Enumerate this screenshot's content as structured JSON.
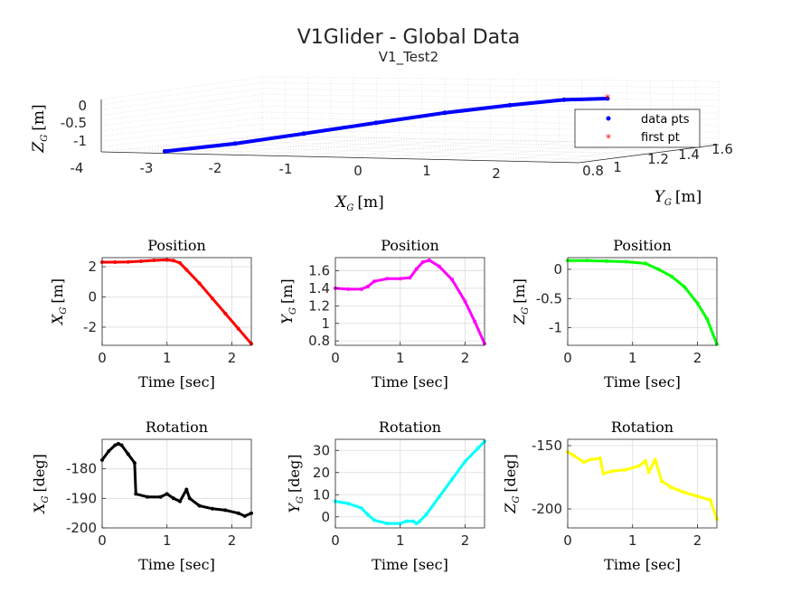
{
  "figure": {
    "title": "V1Glider - Global Data",
    "subtitle": "V1_Test2"
  },
  "colors": {
    "xpos": "#ff0000",
    "ypos": "#ff00ff",
    "zpos": "#00ff00",
    "xrot": "#000000",
    "yrot": "#00ffff",
    "zrot": "#ffff00",
    "track3d": "#0000ff",
    "first_pt": "#ff0000"
  },
  "chart_data": [
    {
      "id": "trajectory3d",
      "type": "scatter",
      "title": "",
      "xlabel": "X",
      "xlabel_sub": "G",
      "xlabel_unit": "[m]",
      "ylabel": "Y",
      "ylabel_sub": "G",
      "ylabel_unit": "[m]",
      "zlabel": "Z",
      "zlabel_sub": "G",
      "zlabel_unit": "[m]",
      "x_ticks": [
        "-4",
        "-3",
        "-2",
        "-1",
        "0",
        "1",
        "2"
      ],
      "y_ticks": [
        "0.8",
        "1",
        "1.2",
        "1.4",
        "1.6"
      ],
      "z_ticks": [
        "0",
        "-0.5",
        "-1"
      ],
      "legend": [
        "data pts",
        "first pt"
      ],
      "legend_position": "right",
      "grid": true,
      "series": [
        {
          "name": "data pts",
          "x": [
            -3.2,
            -2.4,
            -1.6,
            -0.8,
            0.0,
            0.8,
            1.6,
            2.3
          ],
          "y": [
            0.78,
            0.95,
            1.1,
            1.3,
            1.45,
            1.55,
            1.5,
            1.4
          ],
          "z": [
            -1.28,
            -1.1,
            -0.85,
            -0.6,
            -0.35,
            -0.15,
            0.05,
            0.15
          ]
        },
        {
          "name": "first pt",
          "x": [
            2.3
          ],
          "y": [
            1.4
          ],
          "z": [
            0.15
          ]
        }
      ]
    },
    {
      "id": "xpos",
      "type": "scatter",
      "title": "Position",
      "xlabel": "Time [sec]",
      "ylabel": "X",
      "ylabel_sub": "G",
      "ylabel_unit": "[m]",
      "xlim": [
        0,
        2.3
      ],
      "ylim": [
        -3.2,
        2.6
      ],
      "xticks": [
        0,
        1,
        2
      ],
      "yticks": [
        2,
        0,
        -2
      ],
      "grid": true,
      "x": [
        0,
        0.2,
        0.4,
        0.6,
        0.8,
        1.0,
        1.1,
        1.2,
        1.3,
        1.5,
        1.7,
        1.9,
        2.1,
        2.3
      ],
      "y": [
        2.3,
        2.3,
        2.32,
        2.36,
        2.42,
        2.45,
        2.4,
        2.25,
        1.8,
        0.9,
        -0.1,
        -1.1,
        -2.1,
        -3.1
      ]
    },
    {
      "id": "ypos",
      "type": "scatter",
      "title": "Position",
      "xlabel": "Time [sec]",
      "ylabel": "Y",
      "ylabel_sub": "G",
      "ylabel_unit": "[m]",
      "xlim": [
        0,
        2.3
      ],
      "ylim": [
        0.75,
        1.75
      ],
      "xticks": [
        0,
        1,
        2
      ],
      "yticks": [
        1.6,
        1.4,
        1.2,
        1,
        0.8
      ],
      "grid": true,
      "x": [
        0,
        0.2,
        0.4,
        0.5,
        0.6,
        0.8,
        1.0,
        1.15,
        1.25,
        1.35,
        1.45,
        1.6,
        1.8,
        2.0,
        2.15,
        2.3
      ],
      "y": [
        1.4,
        1.39,
        1.39,
        1.42,
        1.48,
        1.51,
        1.51,
        1.52,
        1.62,
        1.7,
        1.72,
        1.65,
        1.5,
        1.25,
        1.02,
        0.77
      ]
    },
    {
      "id": "zpos",
      "type": "scatter",
      "title": "Position",
      "xlabel": "Time [sec]",
      "ylabel": "Z",
      "ylabel_sub": "G",
      "ylabel_unit": "[m]",
      "xlim": [
        0,
        2.3
      ],
      "ylim": [
        -1.3,
        0.2
      ],
      "xticks": [
        0,
        1,
        2
      ],
      "yticks": [
        0,
        -0.5,
        -1
      ],
      "grid": true,
      "x": [
        0,
        0.3,
        0.6,
        0.9,
        1.2,
        1.4,
        1.6,
        1.8,
        2.0,
        2.15,
        2.3
      ],
      "y": [
        0.15,
        0.15,
        0.14,
        0.13,
        0.1,
        0.0,
        -0.12,
        -0.3,
        -0.58,
        -0.85,
        -1.28
      ]
    },
    {
      "id": "xrot",
      "type": "scatter",
      "title": "Rotation",
      "xlabel": "Time [sec]",
      "ylabel": "X",
      "ylabel_sub": "G",
      "ylabel_unit": "[deg]",
      "xlim": [
        0,
        2.3
      ],
      "ylim": [
        -200,
        -170
      ],
      "xticks": [
        0,
        1,
        2
      ],
      "yticks": [
        -180,
        -190,
        -200
      ],
      "grid": true,
      "x": [
        0,
        0.1,
        0.2,
        0.25,
        0.3,
        0.4,
        0.5,
        0.52,
        0.7,
        0.9,
        1.0,
        1.1,
        1.2,
        1.3,
        1.35,
        1.5,
        1.7,
        1.9,
        2.1,
        2.2,
        2.3
      ],
      "y": [
        -177,
        -174,
        -172,
        -171.5,
        -172,
        -175,
        -178,
        -188.5,
        -189.5,
        -189.5,
        -188.5,
        -190,
        -191,
        -187,
        -190,
        -192.5,
        -193.5,
        -194,
        -195,
        -196,
        -195
      ]
    },
    {
      "id": "yrot",
      "type": "scatter",
      "title": "Rotation",
      "xlabel": "Time [sec]",
      "ylabel": "Y",
      "ylabel_sub": "G",
      "ylabel_unit": "[deg]",
      "xlim": [
        0,
        2.3
      ],
      "ylim": [
        -5,
        35
      ],
      "xticks": [
        0,
        1,
        2
      ],
      "yticks": [
        30,
        20,
        10,
        0
      ],
      "grid": true,
      "x": [
        0,
        0.2,
        0.4,
        0.5,
        0.6,
        0.8,
        1.0,
        1.1,
        1.2,
        1.25,
        1.3,
        1.4,
        1.6,
        1.8,
        2.0,
        2.2,
        2.3
      ],
      "y": [
        7,
        6,
        4,
        1,
        -1.5,
        -3,
        -3,
        -2,
        -2,
        -3,
        -2,
        1,
        9,
        17,
        25,
        31,
        34
      ]
    },
    {
      "id": "zrot",
      "type": "scatter",
      "title": "Rotation",
      "xlabel": "Time [sec]",
      "ylabel": "Z",
      "ylabel_sub": "G",
      "ylabel_unit": "[deg]",
      "xlim": [
        0,
        2.3
      ],
      "ylim": [
        -215,
        -145
      ],
      "xticks": [
        0,
        1,
        2
      ],
      "yticks": [
        -150,
        -200
      ],
      "grid": true,
      "x": [
        0,
        0.1,
        0.25,
        0.35,
        0.5,
        0.55,
        0.7,
        0.9,
        1.1,
        1.2,
        1.25,
        1.35,
        1.45,
        1.6,
        1.8,
        2.0,
        2.2,
        2.3
      ],
      "y": [
        -155,
        -158,
        -163,
        -161,
        -160,
        -172,
        -170,
        -169,
        -166,
        -162,
        -171,
        -161,
        -178,
        -183,
        -187,
        -190,
        -193,
        -208
      ]
    }
  ]
}
